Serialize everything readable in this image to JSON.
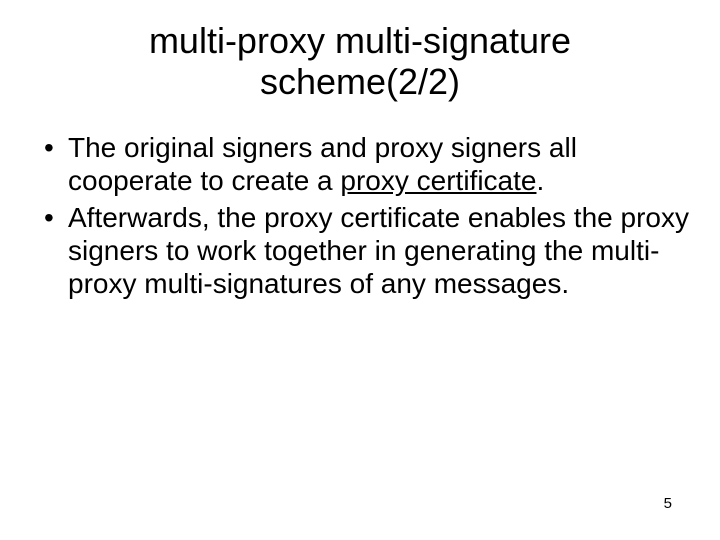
{
  "slide": {
    "title": "multi-proxy multi-signature scheme(2/2)",
    "bullets": [
      {
        "pre": "The original signers and proxy signers all cooperate to create a ",
        "underlined": "proxy certificate",
        "post": "."
      },
      {
        "pre": "Afterwards, the proxy certificate enables the proxy signers to work together in generating the multi-proxy multi-signatures of any messages.",
        "underlined": "",
        "post": ""
      }
    ],
    "page_number": "5"
  },
  "style": {
    "background_color": "#ffffff",
    "text_color": "#000000",
    "title_fontsize": 36,
    "body_fontsize": 28,
    "pagenum_fontsize": 15
  }
}
